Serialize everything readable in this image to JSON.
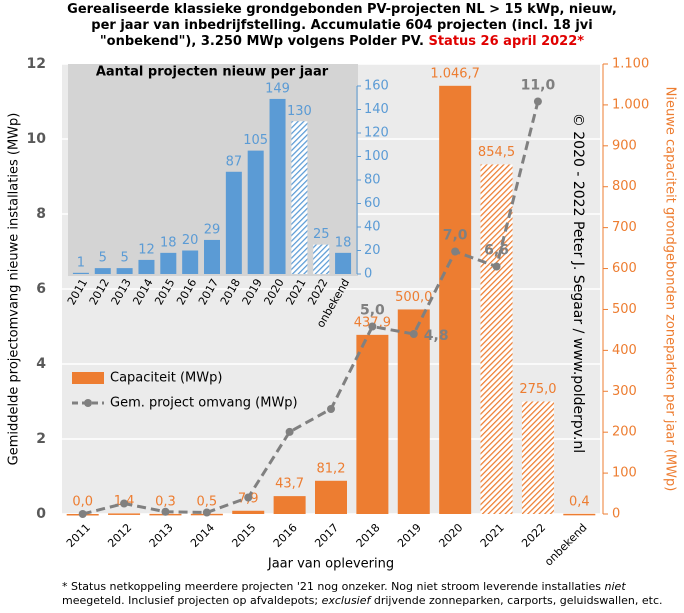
{
  "chart_data": [
    {
      "type": "combo",
      "title_lines": [
        "Gerealiseerde klassieke grondgebonden PV-projecten NL > 15 kWp, nieuw,",
        "per jaar van inbedrijfstelling. Accumulatie 604 projecten (incl. 18 jvi",
        "\"onbekend\"), 3.250 MWp volgens Polder PV."
      ],
      "title_status": "Status 26 april 2022*",
      "x_label": "Jaar van oplevering",
      "y_label": "Gemiddelde projectomvang nieuwe installaties (MWp)",
      "y2_label": "Nieuwe capaciteit grondgebonden zoneparken per jaar (MWp)",
      "copyright": "© 2020 - 2022 Peter J. Segaar / www.polderpv.nl",
      "categories": [
        "2011",
        "2012",
        "2013",
        "2014",
        "2015",
        "2016",
        "2017",
        "2018",
        "2019",
        "2020",
        "2021",
        "2022",
        "onbekend"
      ],
      "ylim": [
        0,
        12
      ],
      "yticks": [
        0,
        2,
        4,
        6,
        8,
        10,
        12
      ],
      "y2lim": [
        0,
        1100
      ],
      "y2ticks": [
        0,
        100,
        200,
        300,
        400,
        500,
        600,
        700,
        800,
        900,
        {
          "value": 1000,
          "label": "1.000"
        },
        {
          "value": 1100,
          "label": "1.100"
        }
      ],
      "grid": true,
      "series": [
        {
          "name": "Capaciteit (MWp)",
          "type": "bar",
          "axis": "y2",
          "color": "#ed7d31",
          "values": [
            0.0,
            1.4,
            0.3,
            0.5,
            7.9,
            43.7,
            81.2,
            437.9,
            500.0,
            1046.7,
            854.5,
            275.0,
            0.4
          ],
          "value_labels": [
            "0,0",
            "1,4",
            "0,3",
            "0,5",
            "7,9",
            "43,7",
            "81,2",
            "437,9",
            "500,0",
            "1.046,7",
            "854,5",
            "275,0",
            "0,4"
          ],
          "hatched": [
            false,
            false,
            false,
            false,
            false,
            false,
            false,
            false,
            false,
            false,
            true,
            true,
            false
          ]
        },
        {
          "name": "Gem. project omvang (MWp)",
          "type": "line",
          "axis": "y",
          "color": "#808080",
          "values": [
            0.0,
            0.28,
            0.06,
            0.04,
            0.44,
            2.19,
            2.8,
            5.0,
            4.8,
            7.0,
            6.6,
            11.0,
            null
          ],
          "value_labels": [
            null,
            null,
            null,
            null,
            null,
            null,
            null,
            "5,0",
            "4,8",
            "7,0",
            "6,6",
            "11,0",
            null
          ]
        }
      ]
    },
    {
      "type": "bar",
      "title": "Aantal projecten nieuw per jaar",
      "categories": [
        "2011",
        "2012",
        "2013",
        "2014",
        "2015",
        "2016",
        "2017",
        "2018",
        "2019",
        "2020",
        "2021",
        "2022",
        "onbekend"
      ],
      "values": [
        1,
        5,
        5,
        12,
        18,
        20,
        29,
        87,
        105,
        149,
        130,
        25,
        18
      ],
      "hatched": [
        false,
        false,
        false,
        false,
        false,
        false,
        false,
        false,
        false,
        false,
        true,
        true,
        false
      ],
      "color": "#5b9bd5",
      "ylim": [
        0,
        160
      ],
      "yticks": [
        0,
        20,
        40,
        60,
        80,
        100,
        120,
        140,
        160
      ],
      "grid": false
    }
  ],
  "footnote": [
    {
      "text": "* Status netkoppeling meerdere projecten '21 nog onzeker. Nog niet stroom leverende installaties ",
      "italic": false
    },
    {
      "text": "niet",
      "italic": true
    },
    {
      "text": " meegeteld. Inclusief projecten op afvaldepots; ",
      "italic": false
    },
    {
      "text": "exclusief",
      "italic": true
    },
    {
      "text": " drijvende zonneparken, carports, geluidswallen, etc.",
      "italic": false
    }
  ]
}
